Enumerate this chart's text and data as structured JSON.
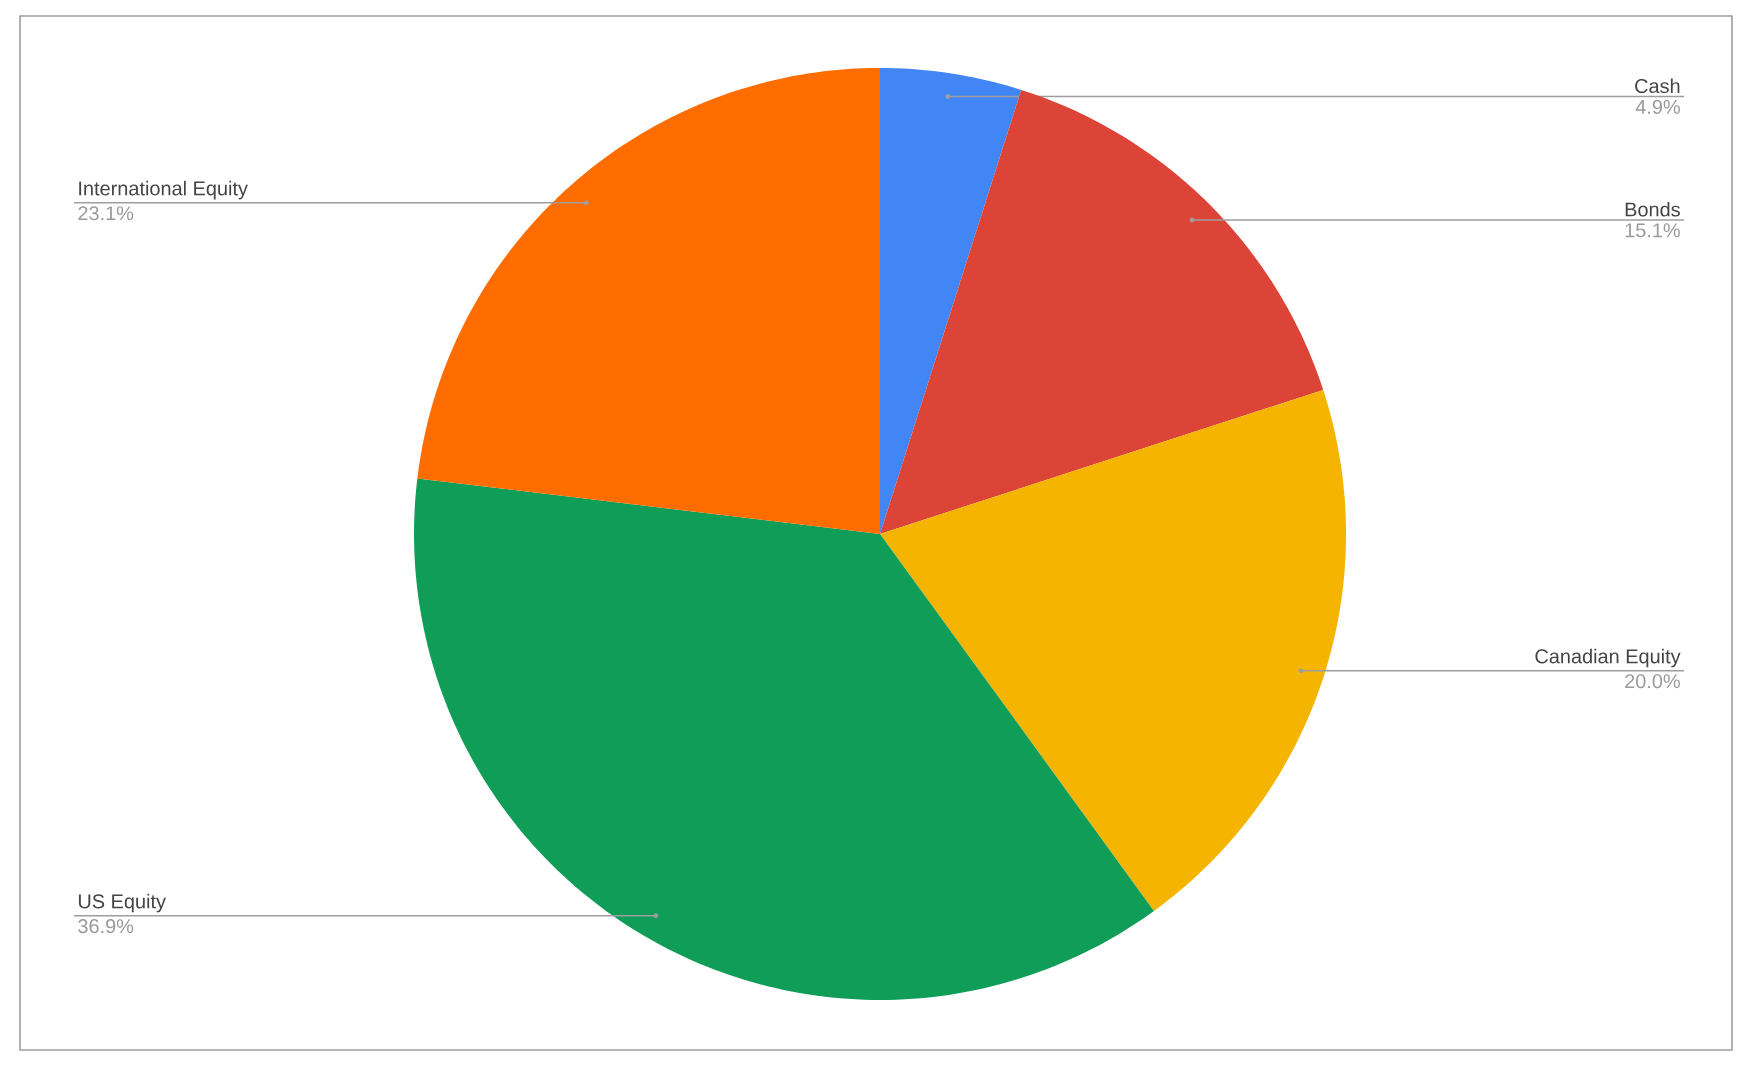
{
  "chart_data": {
    "type": "pie",
    "categories": [
      "Cash",
      "Bonds",
      "Canadian Equity",
      "US Equity",
      "International Equity"
    ],
    "values": [
      4.9,
      15.1,
      20.0,
      36.9,
      23.1
    ],
    "colors": [
      "#4285f4",
      "#db4437",
      "#f4b400",
      "#0f9d58",
      "#ff6d00"
    ],
    "value_labels": [
      "4.9%",
      "15.1%",
      "20.0%",
      "36.9%",
      "23.1%"
    ]
  }
}
